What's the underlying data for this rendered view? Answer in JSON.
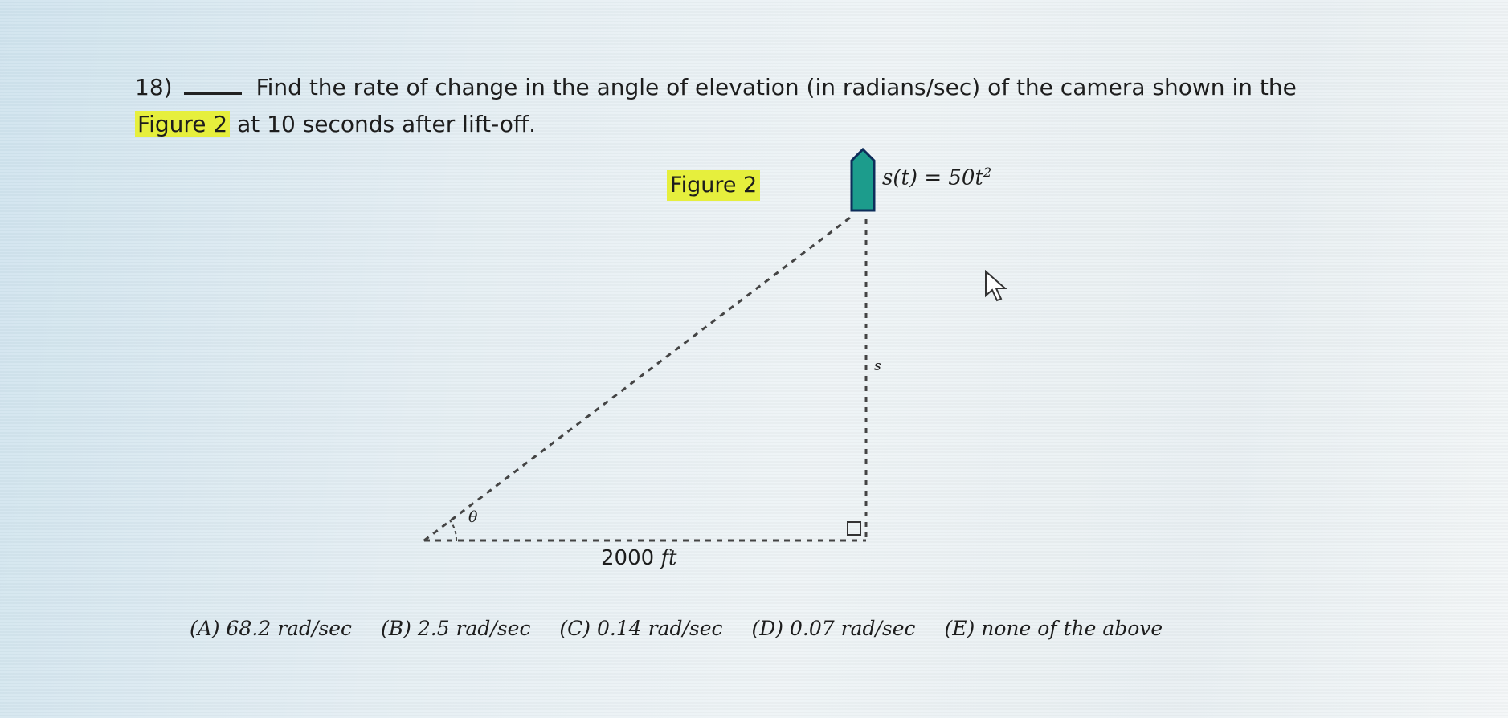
{
  "question": {
    "number": "18)",
    "text_before": "Find the rate of change in the angle of elevation (in radians/sec) of the camera shown in the",
    "highlight": "Figure 2",
    "text_after": "at 10 seconds after lift-off."
  },
  "figure": {
    "title": "Figure 2",
    "position_function": "s(t) = 50t",
    "position_exponent": "2",
    "vertical_label": "s",
    "angle_label": "θ",
    "distance_value": "2000",
    "distance_unit": "ft",
    "rocket_color": "#1c9c8c",
    "highlight_color": "#e6ef3d"
  },
  "choices": [
    {
      "letter": "(A)",
      "text": "68.2 rad/sec"
    },
    {
      "letter": "(B)",
      "text": "2.5 rad/sec"
    },
    {
      "letter": "(C)",
      "text": "0.14 rad/sec"
    },
    {
      "letter": "(D)",
      "text": "0.07 rad/sec"
    },
    {
      "letter": "(E)",
      "text": "none of the above"
    }
  ],
  "cursor_icon": "arrow-pointer-icon"
}
